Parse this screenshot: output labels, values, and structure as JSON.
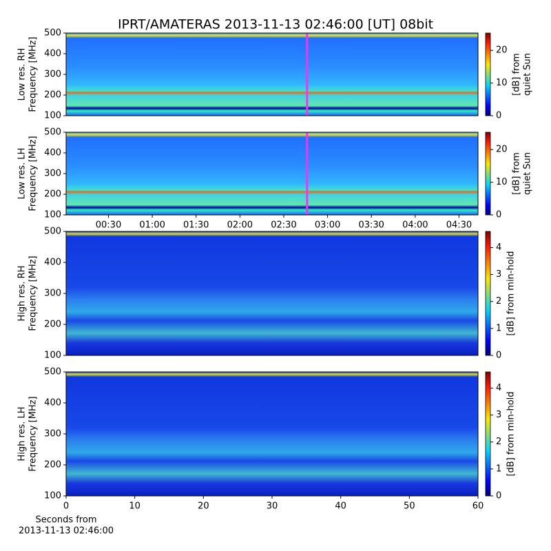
{
  "title": "IPRT/AMATERAS 2013-11-13 02:46:00 [UT]   08bit",
  "chart_data": [
    {
      "type": "spectrogram",
      "ylabel": [
        "Low res. RH",
        "Frequency [MHz]"
      ],
      "ylim": [
        100,
        500
      ],
      "yticks": [
        100,
        200,
        300,
        400,
        500
      ],
      "xlim": [
        1,
        283
      ],
      "marker_x": 166,
      "marker_color": "#e83ce8",
      "colorbar": {
        "label": [
          "[dB] from",
          "quiet Sun"
        ],
        "clim": [
          0,
          25.3
        ],
        "ticks": [
          0,
          10,
          20
        ]
      }
    },
    {
      "type": "spectrogram",
      "ylabel": [
        "Low res. LH",
        "Frequency [MHz]"
      ],
      "ylim": [
        100,
        500
      ],
      "yticks": [
        100,
        200,
        300,
        400,
        500
      ],
      "xlim": [
        1,
        283
      ],
      "marker_x": 166,
      "marker_color": "#e83ce8",
      "xticks": [
        {
          "value": 30,
          "label": "00:30"
        },
        {
          "value": 60,
          "label": "01:00"
        },
        {
          "value": 90,
          "label": "01:30"
        },
        {
          "value": 120,
          "label": "02:00"
        },
        {
          "value": 150,
          "label": "02:30"
        },
        {
          "value": 180,
          "label": "03:00"
        },
        {
          "value": 210,
          "label": "03:30"
        },
        {
          "value": 240,
          "label": "04:00"
        },
        {
          "value": 270,
          "label": "04:30"
        }
      ],
      "colorbar": {
        "label": [
          "[dB] from",
          "quiet Sun"
        ],
        "clim": [
          0,
          25.3
        ],
        "ticks": [
          0,
          10,
          20
        ]
      }
    },
    {
      "type": "spectrogram",
      "ylabel": [
        "High res. RH",
        "Frequency [MHz]"
      ],
      "ylim": [
        100,
        500
      ],
      "yticks": [
        100,
        200,
        300,
        400,
        500
      ],
      "xlim": [
        0,
        60
      ],
      "colorbar": {
        "label": [
          "[dB] from min-hold"
        ],
        "clim": [
          0,
          4.6
        ],
        "ticks": [
          0,
          1,
          2,
          3,
          4
        ]
      }
    },
    {
      "type": "spectrogram",
      "ylabel": [
        "High res. LH",
        "Frequency [MHz]"
      ],
      "ylim": [
        100,
        500
      ],
      "yticks": [
        100,
        200,
        300,
        400,
        500
      ],
      "xlim": [
        0,
        60
      ],
      "xticks": [
        0,
        10,
        20,
        30,
        40,
        50,
        60
      ],
      "xlabel": [
        "Seconds from",
        "2013-11-13 02:46:00"
      ],
      "colorbar": {
        "label": [
          "[dB] from min-hold"
        ],
        "clim": [
          0,
          4.6
        ],
        "ticks": [
          0,
          1,
          2,
          3,
          4
        ]
      }
    }
  ]
}
